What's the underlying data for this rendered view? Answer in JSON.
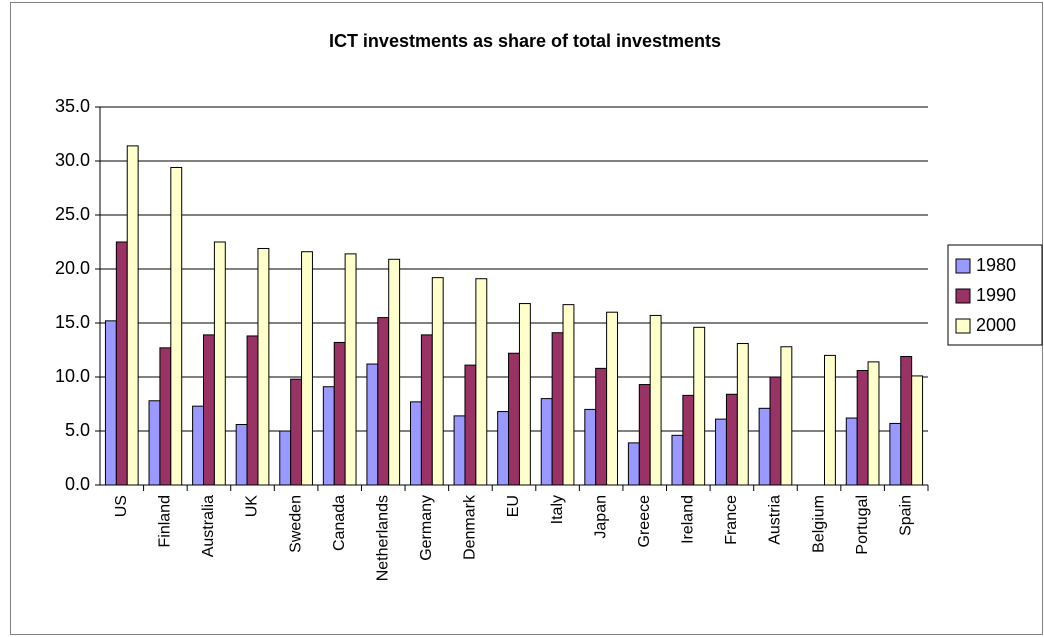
{
  "chart_data": {
    "type": "bar",
    "title": "ICT investments as share of total investments",
    "categories": [
      "US",
      "Finland",
      "Australia",
      "UK",
      "Sweden",
      "Canada",
      "Netherlands",
      "Germany",
      "Denmark",
      "EU",
      "Italy",
      "Japan",
      "Greece",
      "Ireland",
      "France",
      "Austria",
      "Belgium",
      "Portugal",
      "Spain"
    ],
    "series": [
      {
        "name": "1980",
        "color": "#9999ff",
        "values": [
          15.2,
          7.8,
          7.3,
          5.6,
          5.0,
          9.1,
          11.2,
          7.7,
          6.4,
          6.8,
          8.0,
          7.0,
          3.9,
          4.6,
          6.1,
          7.1,
          null,
          6.2,
          5.7
        ]
      },
      {
        "name": "1990",
        "color": "#993366",
        "values": [
          22.5,
          12.7,
          13.9,
          13.8,
          9.8,
          13.2,
          15.5,
          13.9,
          11.1,
          12.2,
          14.1,
          10.8,
          9.3,
          8.3,
          8.4,
          10.0,
          null,
          10.6,
          11.9
        ]
      },
      {
        "name": "2000",
        "color": "#ffffcc",
        "values": [
          31.4,
          29.4,
          22.5,
          21.9,
          21.6,
          21.4,
          20.9,
          19.2,
          19.1,
          16.8,
          16.7,
          16.0,
          15.7,
          14.6,
          13.1,
          12.8,
          12.0,
          11.4,
          10.1
        ]
      }
    ],
    "ylim": [
      0,
      35
    ],
    "yticks": [
      {
        "value": 0,
        "label": "0.0"
      },
      {
        "value": 5,
        "label": "5.0"
      },
      {
        "value": 10,
        "label": "10.0"
      },
      {
        "value": 15,
        "label": "15.0"
      },
      {
        "value": 20,
        "label": "20.0"
      },
      {
        "value": 25,
        "label": "25.0"
      },
      {
        "value": 30,
        "label": "30.0"
      },
      {
        "value": 35,
        "label": "35.0"
      }
    ],
    "grid": true,
    "legend": "right"
  }
}
